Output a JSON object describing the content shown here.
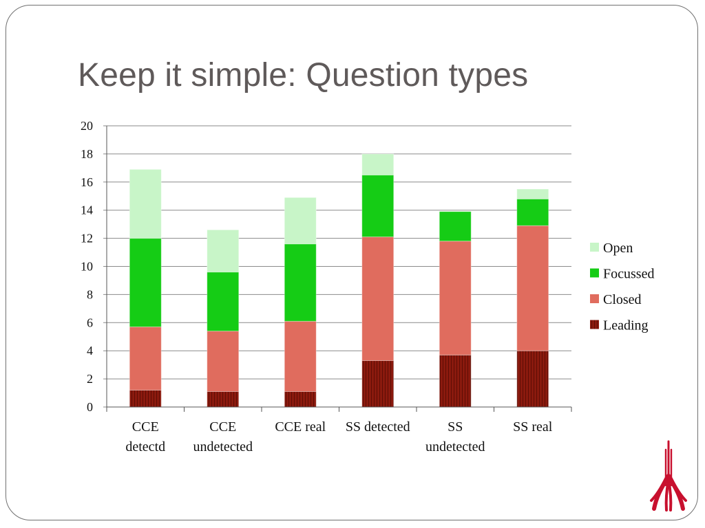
{
  "slide": {
    "title": "Keep it simple: Question types"
  },
  "colors": {
    "Leading": "#8b1a0e",
    "Closed": "#e06c5e",
    "Focussed": "#15cc15",
    "Open": "#c8f5c8",
    "gridline": "#8a8a8a",
    "text": "#111111",
    "logo": "#c8102e"
  },
  "logo": {
    "icon": "crest-icon"
  },
  "chart_data": {
    "type": "bar",
    "stacked": true,
    "categories": [
      [
        "CCE",
        "detectd"
      ],
      [
        "CCE",
        "undetected"
      ],
      [
        "CCE real"
      ],
      [
        "SS detected"
      ],
      [
        "SS",
        "undetected"
      ],
      [
        "SS real"
      ]
    ],
    "series": [
      {
        "name": "Leading",
        "values": [
          1.2,
          1.1,
          1.1,
          3.3,
          3.7,
          4.0
        ]
      },
      {
        "name": "Closed",
        "values": [
          4.5,
          4.3,
          5.0,
          8.8,
          8.1,
          8.9
        ]
      },
      {
        "name": "Focussed",
        "values": [
          6.3,
          4.2,
          5.5,
          4.4,
          2.1,
          1.9
        ]
      },
      {
        "name": "Open",
        "values": [
          4.9,
          3.0,
          3.3,
          1.5,
          0.0,
          0.7
        ]
      }
    ],
    "ylim": [
      0,
      20
    ],
    "yticks": [
      0,
      2,
      4,
      6,
      8,
      10,
      12,
      14,
      16,
      18,
      20
    ],
    "grid": true,
    "legend": "right",
    "legend_order": [
      "Open",
      "Focussed",
      "Closed",
      "Leading"
    ],
    "title": "",
    "xlabel": "",
    "ylabel": ""
  }
}
